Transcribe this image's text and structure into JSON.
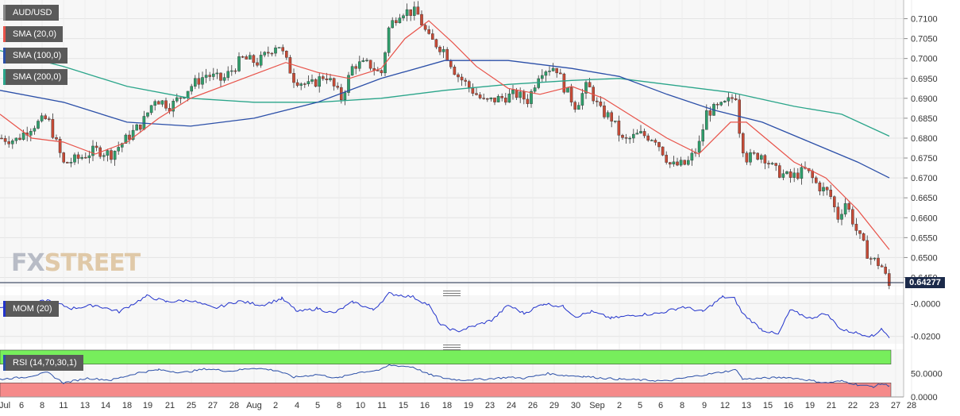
{
  "pair": "AUD/USD",
  "last_price": "0.64277",
  "watermark": {
    "fx": "FX",
    "street": "STREET"
  },
  "legends": {
    "sma20": "SMA (20,0)",
    "sma100": "SMA (100,0)",
    "sma200": "SMA (200,0)",
    "mom": "MOM (20)",
    "rsi": "RSI (14,70,30,1)"
  },
  "colors": {
    "bull": "#2e9e6b",
    "bear": "#c64a36",
    "sma20": "#e8534a",
    "sma100": "#2b4fa8",
    "sma200": "#2aa58a",
    "mom": "#2233cc",
    "rsi": "#2b4fa8",
    "rsi_overbought": "#77ee5c",
    "rsi_oversold": "#f58a8a",
    "price_tag_bg": "#1b2a4a"
  },
  "chart_data": [
    {
      "type": "candlestick",
      "title": "AUD/USD",
      "ylim": [
        0.6427,
        0.7135
      ],
      "y_ticks": [
        "0.7100",
        "0.7050",
        "0.7000",
        "0.6950",
        "0.6900",
        "0.6850",
        "0.6800",
        "0.6750",
        "0.6700",
        "0.6650",
        "0.6600",
        "0.6550",
        "0.6500",
        "0.6450"
      ],
      "x_ticks": [
        "Jul",
        "6",
        "8",
        "11",
        "13",
        "14",
        "18",
        "19",
        "21",
        "25",
        "27",
        "28",
        "Aug",
        "2",
        "4",
        "5",
        "8",
        "10",
        "11",
        "15",
        "16",
        "18",
        "19",
        "23",
        "24",
        "26",
        "29",
        "30",
        "Sep",
        "2",
        "5",
        "6",
        "8",
        "9",
        "12",
        "13",
        "15",
        "16",
        "19",
        "21",
        "22",
        "23",
        "27",
        "28"
      ],
      "x_tick_positions": [
        6,
        27,
        53,
        80,
        107,
        133,
        160,
        186,
        214,
        241,
        268,
        295,
        320,
        347,
        374,
        400,
        427,
        454,
        481,
        508,
        535,
        563,
        590,
        617,
        644,
        671,
        698,
        725,
        752,
        780,
        806,
        832,
        859,
        887,
        913,
        940,
        967,
        993,
        1020,
        1047,
        1074,
        1101,
        1128,
        1148
      ],
      "close_path": [
        [
          0,
          0.68
        ],
        [
          20,
          0.6795
        ],
        [
          40,
          0.683
        ],
        [
          60,
          0.685
        ],
        [
          80,
          0.6735
        ],
        [
          100,
          0.675
        ],
        [
          120,
          0.677
        ],
        [
          140,
          0.676
        ],
        [
          160,
          0.68
        ],
        [
          180,
          0.684
        ],
        [
          195,
          0.69
        ],
        [
          215,
          0.688
        ],
        [
          240,
          0.693
        ],
        [
          260,
          0.696
        ],
        [
          280,
          0.6945
        ],
        [
          305,
          0.7
        ],
        [
          325,
          0.699
        ],
        [
          350,
          0.704
        ],
        [
          370,
          0.695
        ],
        [
          390,
          0.693
        ],
        [
          410,
          0.696
        ],
        [
          430,
          0.69
        ],
        [
          445,
          0.6985
        ],
        [
          465,
          0.6985
        ],
        [
          480,
          0.696
        ],
        [
          490,
          0.708
        ],
        [
          505,
          0.712
        ],
        [
          525,
          0.7115
        ],
        [
          540,
          0.705
        ],
        [
          560,
          0.702
        ],
        [
          575,
          0.696
        ],
        [
          590,
          0.693
        ],
        [
          610,
          0.689
        ],
        [
          630,
          0.69
        ],
        [
          650,
          0.691
        ],
        [
          665,
          0.6895
        ],
        [
          680,
          0.697
        ],
        [
          700,
          0.698
        ],
        [
          710,
          0.693
        ],
        [
          725,
          0.688
        ],
        [
          740,
          0.6935
        ],
        [
          755,
          0.687
        ],
        [
          770,
          0.685
        ],
        [
          785,
          0.679
        ],
        [
          805,
          0.681
        ],
        [
          825,
          0.68
        ],
        [
          845,
          0.673
        ],
        [
          865,
          0.6735
        ],
        [
          880,
          0.678
        ],
        [
          890,
          0.6865
        ],
        [
          910,
          0.688
        ],
        [
          928,
          0.691
        ],
        [
          932,
          0.68
        ],
        [
          940,
          0.675
        ],
        [
          960,
          0.676
        ],
        [
          975,
          0.672
        ],
        [
          995,
          0.67
        ],
        [
          1015,
          0.672
        ],
        [
          1030,
          0.668
        ],
        [
          1045,
          0.666
        ],
        [
          1055,
          0.66
        ],
        [
          1065,
          0.664
        ],
        [
          1080,
          0.656
        ],
        [
          1095,
          0.65
        ],
        [
          1110,
          0.648
        ],
        [
          1120,
          0.6427
        ]
      ],
      "sma20": [
        [
          0,
          0.686
        ],
        [
          40,
          0.68
        ],
        [
          80,
          0.679
        ],
        [
          120,
          0.676
        ],
        [
          160,
          0.679
        ],
        [
          200,
          0.685
        ],
        [
          240,
          0.69
        ],
        [
          280,
          0.693
        ],
        [
          320,
          0.696
        ],
        [
          360,
          0.699
        ],
        [
          400,
          0.6965
        ],
        [
          440,
          0.695
        ],
        [
          480,
          0.6975
        ],
        [
          510,
          0.705
        ],
        [
          540,
          0.7095
        ],
        [
          570,
          0.704
        ],
        [
          600,
          0.698
        ],
        [
          640,
          0.6925
        ],
        [
          680,
          0.691
        ],
        [
          720,
          0.693
        ],
        [
          760,
          0.69
        ],
        [
          800,
          0.685
        ],
        [
          840,
          0.68
        ],
        [
          880,
          0.676
        ],
        [
          920,
          0.684
        ],
        [
          940,
          0.684
        ],
        [
          970,
          0.679
        ],
        [
          1000,
          0.674
        ],
        [
          1040,
          0.67
        ],
        [
          1080,
          0.662
        ],
        [
          1120,
          0.652
        ]
      ],
      "sma100": [
        [
          0,
          0.692
        ],
        [
          80,
          0.689
        ],
        [
          160,
          0.684
        ],
        [
          240,
          0.683
        ],
        [
          320,
          0.685
        ],
        [
          400,
          0.689
        ],
        [
          480,
          0.695
        ],
        [
          560,
          0.6995
        ],
        [
          640,
          0.6995
        ],
        [
          720,
          0.6975
        ],
        [
          780,
          0.6955
        ],
        [
          840,
          0.691
        ],
        [
          900,
          0.687
        ],
        [
          960,
          0.684
        ],
        [
          1020,
          0.679
        ],
        [
          1080,
          0.674
        ],
        [
          1120,
          0.67
        ]
      ],
      "sma200": [
        [
          0,
          0.702
        ],
        [
          80,
          0.698
        ],
        [
          160,
          0.693
        ],
        [
          240,
          0.69
        ],
        [
          320,
          0.689
        ],
        [
          400,
          0.689
        ],
        [
          480,
          0.69
        ],
        [
          560,
          0.692
        ],
        [
          640,
          0.6935
        ],
        [
          720,
          0.6945
        ],
        [
          780,
          0.695
        ],
        [
          840,
          0.6935
        ],
        [
          920,
          0.6915
        ],
        [
          1000,
          0.688
        ],
        [
          1060,
          0.686
        ],
        [
          1120,
          0.6805
        ]
      ]
    },
    {
      "type": "line",
      "title": "MOM (20)",
      "ylim": [
        -0.024,
        0.004
      ],
      "y_ticks": [
        "-0.0000",
        "-0.0200"
      ],
      "series": [
        {
          "name": "MOM (20)",
          "values": [
            [
              0,
              -0.002
            ],
            [
              30,
              -0.0015
            ],
            [
              60,
              0.002
            ],
            [
              90,
              -0.003
            ],
            [
              120,
              -0.001
            ],
            [
              150,
              -0.005
            ],
            [
              185,
              0.0045
            ],
            [
              210,
              0.001
            ],
            [
              240,
              0.002
            ],
            [
              270,
              -0.003
            ],
            [
              300,
              0.0015
            ],
            [
              330,
              -0.001
            ],
            [
              355,
              0.003
            ],
            [
              375,
              -0.005
            ],
            [
              400,
              -0.003
            ],
            [
              420,
              -0.006
            ],
            [
              445,
              0.001
            ],
            [
              470,
              -0.004
            ],
            [
              490,
              0.006
            ],
            [
              520,
              0.004
            ],
            [
              540,
              -0.001
            ],
            [
              555,
              -0.013
            ],
            [
              575,
              -0.017
            ],
            [
              595,
              -0.014
            ],
            [
              620,
              -0.01
            ],
            [
              640,
              -0.001
            ],
            [
              660,
              -0.006
            ],
            [
              685,
              0.0
            ],
            [
              710,
              -0.002
            ],
            [
              725,
              -0.008
            ],
            [
              745,
              -0.005
            ],
            [
              770,
              -0.009
            ],
            [
              800,
              -0.007
            ],
            [
              830,
              -0.006
            ],
            [
              860,
              -0.002
            ],
            [
              885,
              -0.005
            ],
            [
              910,
              0.004
            ],
            [
              925,
              0.003
            ],
            [
              935,
              -0.006
            ],
            [
              960,
              -0.016
            ],
            [
              980,
              -0.019
            ],
            [
              995,
              -0.004
            ],
            [
              1020,
              -0.009
            ],
            [
              1040,
              -0.006
            ],
            [
              1060,
              -0.016
            ],
            [
              1080,
              -0.018
            ],
            [
              1100,
              -0.02
            ],
            [
              1110,
              -0.015
            ],
            [
              1120,
              -0.021
            ]
          ]
        }
      ]
    },
    {
      "type": "line",
      "title": "RSI (14,70,30,1)",
      "ylim": [
        0,
        100
      ],
      "y_ticks": [
        "50.0000",
        "0.0000"
      ],
      "bands": {
        "overbought": 70,
        "oversold": 30
      },
      "series": [
        {
          "name": "RSI (14,70,30,1)",
          "values": [
            [
              0,
              38
            ],
            [
              30,
              42
            ],
            [
              60,
              52
            ],
            [
              80,
              30
            ],
            [
              110,
              40
            ],
            [
              140,
              36
            ],
            [
              175,
              52
            ],
            [
              200,
              58
            ],
            [
              230,
              52
            ],
            [
              260,
              60
            ],
            [
              290,
              55
            ],
            [
              320,
              62
            ],
            [
              350,
              56
            ],
            [
              370,
              42
            ],
            [
              400,
              48
            ],
            [
              425,
              40
            ],
            [
              450,
              52
            ],
            [
              480,
              58
            ],
            [
              490,
              68
            ],
            [
              520,
              64
            ],
            [
              540,
              48
            ],
            [
              560,
              40
            ],
            [
              580,
              36
            ],
            [
              610,
              38
            ],
            [
              640,
              42
            ],
            [
              660,
              40
            ],
            [
              690,
              50
            ],
            [
              710,
              46
            ],
            [
              735,
              44
            ],
            [
              760,
              40
            ],
            [
              780,
              38
            ],
            [
              810,
              36
            ],
            [
              840,
              34
            ],
            [
              860,
              40
            ],
            [
              890,
              48
            ],
            [
              920,
              56
            ],
            [
              928,
              58
            ],
            [
              935,
              38
            ],
            [
              960,
              40
            ],
            [
              990,
              42
            ],
            [
              1010,
              38
            ],
            [
              1040,
              30
            ],
            [
              1060,
              34
            ],
            [
              1080,
              26
            ],
            [
              1100,
              22
            ],
            [
              1110,
              28
            ],
            [
              1120,
              24
            ]
          ]
        }
      ]
    }
  ]
}
